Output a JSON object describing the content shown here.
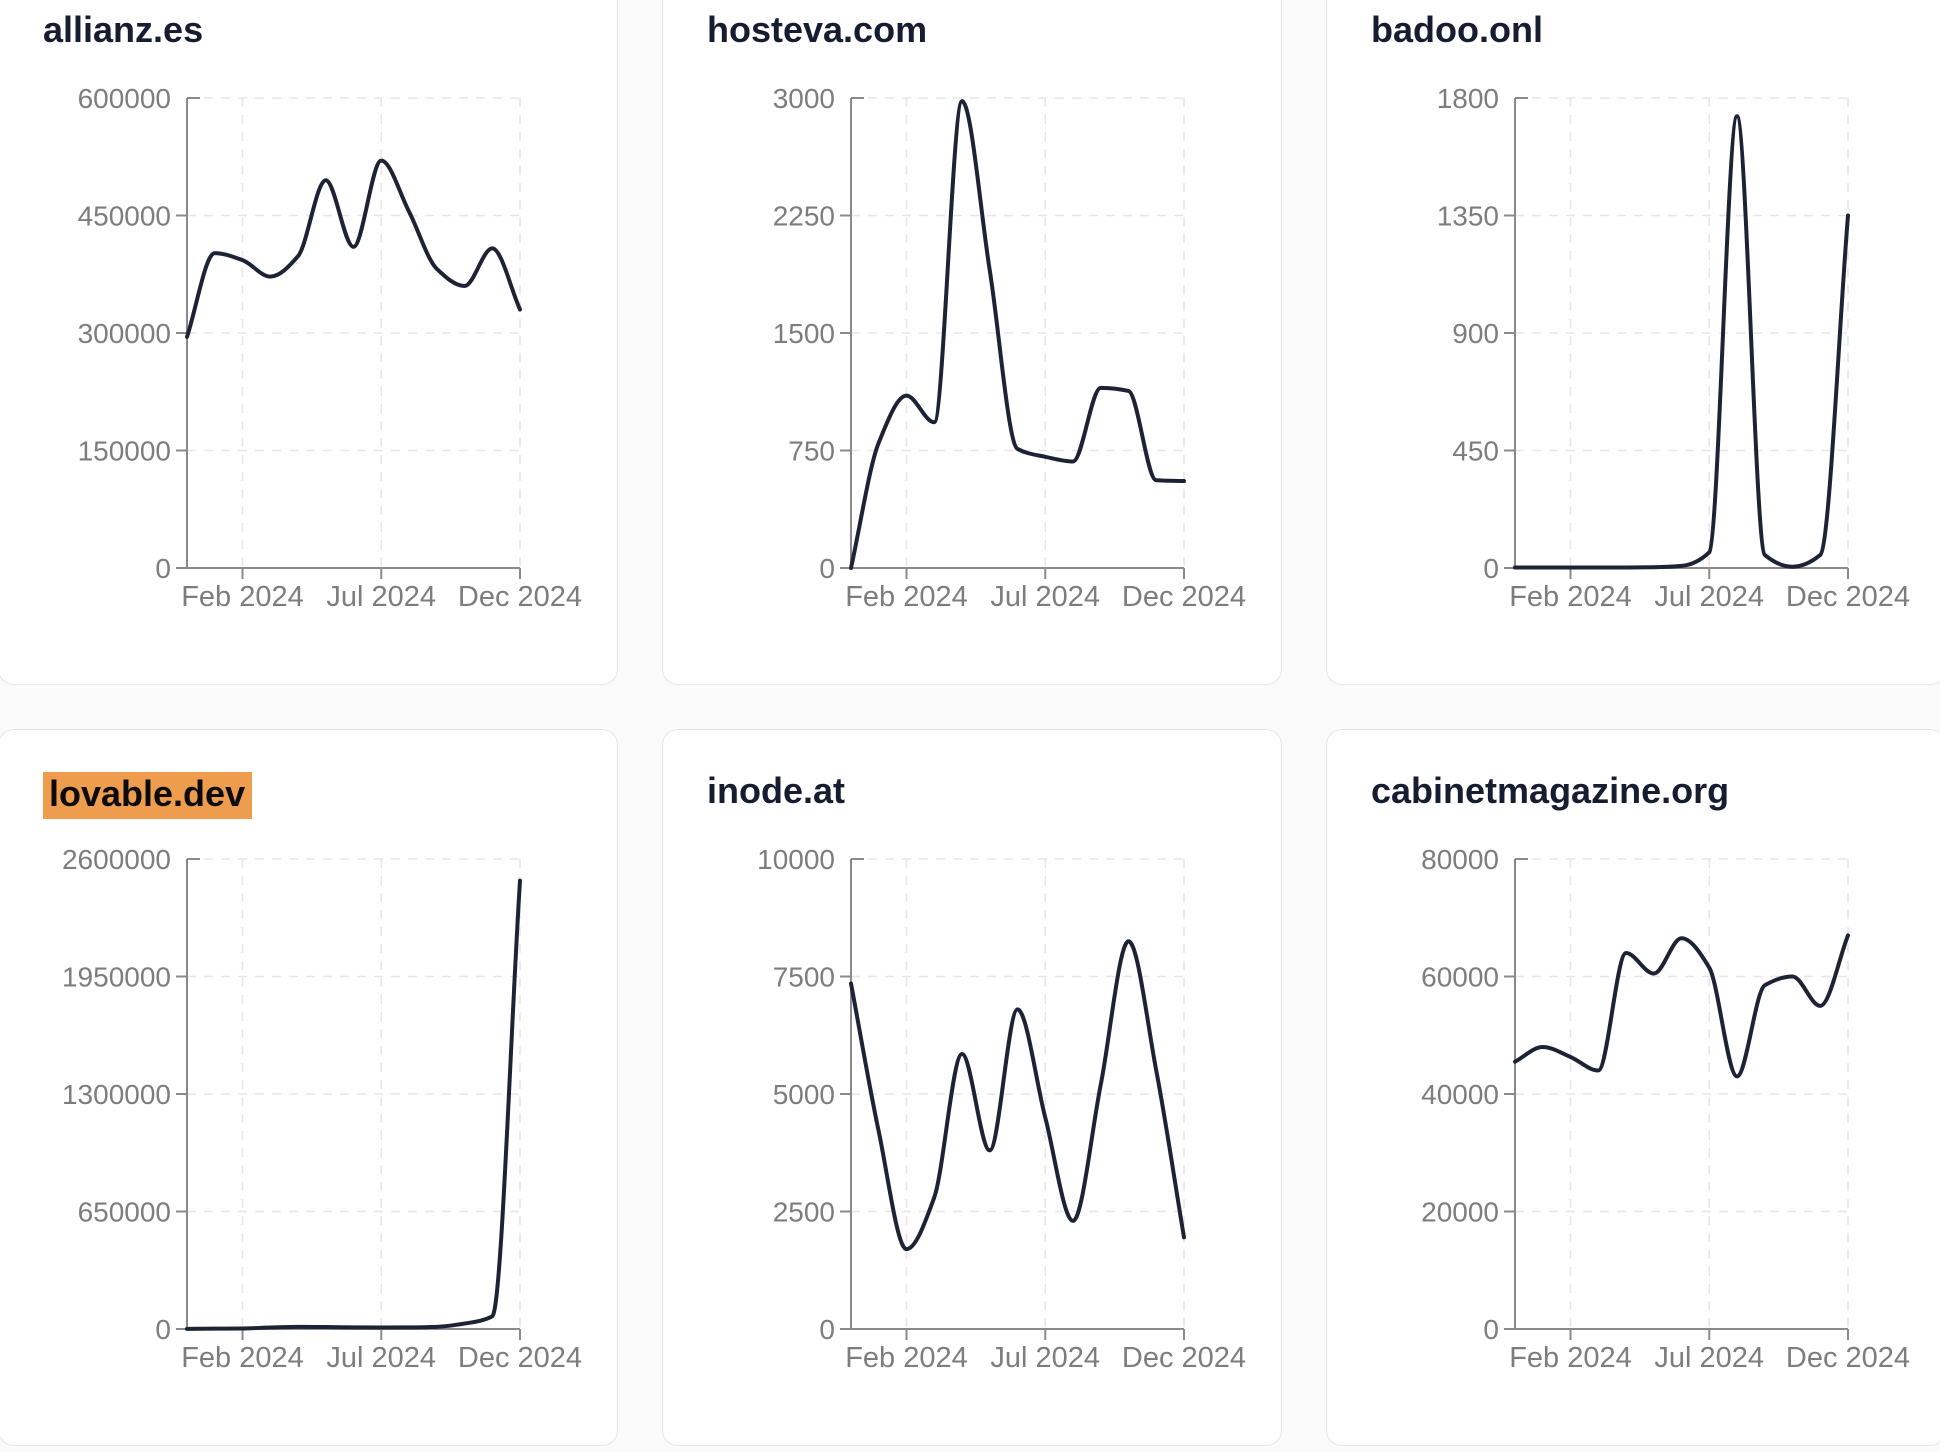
{
  "style": {
    "page_bg": "#fbfbfc",
    "card_bg": "#ffffff",
    "card_border": "#e4e7ee",
    "title_color": "#161d30",
    "line_color": "#1c2335",
    "axis_color": "#8a8a8a",
    "label_color": "#7d7d7d",
    "grid_color": "#e6e6e8",
    "highlight_bg": "#ee9c4e",
    "highlight_text": "#0b0b0b"
  },
  "x_axis": {
    "months": [
      "2023-12",
      "2024-01",
      "2024-02",
      "2024-03",
      "2024-04",
      "2024-05",
      "2024-06",
      "2024-07",
      "2024-08",
      "2024-09",
      "2024-10",
      "2024-11",
      "2024-12"
    ],
    "tick_labels": [
      "Feb 2024",
      "Jul 2024",
      "Dec 2024"
    ],
    "tick_month_indexes": [
      2,
      7,
      12
    ]
  },
  "chart_data": [
    {
      "type": "line",
      "title": "allianz.es",
      "highlighted": false,
      "ylim": [
        0,
        600000
      ],
      "y_ticks": [
        0,
        150000,
        300000,
        450000,
        600000
      ],
      "x_tick_labels": [
        "Feb 2024",
        "Jul 2024",
        "Dec 2024"
      ],
      "values": [
        295000,
        402000,
        393000,
        372000,
        398000,
        495000,
        410000,
        520000,
        455000,
        382000,
        360000,
        408000,
        330000
      ]
    },
    {
      "type": "line",
      "title": "hosteva.com",
      "highlighted": false,
      "ylim": [
        0,
        3000
      ],
      "y_ticks": [
        0,
        750,
        1500,
        2250,
        3000
      ],
      "x_tick_labels": [
        "Feb 2024",
        "Jul 2024",
        "Dec 2024"
      ],
      "values": [
        0,
        800,
        1100,
        930,
        2980,
        1900,
        760,
        710,
        680,
        1150,
        1130,
        560,
        555
      ]
    },
    {
      "type": "line",
      "title": "badoo.onl",
      "highlighted": false,
      "ylim": [
        0,
        1800
      ],
      "y_ticks": [
        0,
        450,
        900,
        1350,
        1800
      ],
      "x_tick_labels": [
        "Feb 2024",
        "Jul 2024",
        "Dec 2024"
      ],
      "values": [
        2,
        2,
        2,
        2,
        2,
        3,
        8,
        60,
        1730,
        50,
        5,
        50,
        1350
      ]
    },
    {
      "type": "line",
      "title": "lovable.dev",
      "highlighted": true,
      "ylim": [
        0,
        2600000
      ],
      "y_ticks": [
        0,
        650000,
        1300000,
        1950000,
        2600000
      ],
      "x_tick_labels": [
        "Feb 2024",
        "Jul 2024",
        "Dec 2024"
      ],
      "values": [
        1000,
        2000,
        3000,
        8000,
        12000,
        11000,
        9000,
        8000,
        9000,
        12000,
        30000,
        70000,
        2480000
      ]
    },
    {
      "type": "line",
      "title": "inode.at",
      "highlighted": false,
      "ylim": [
        0,
        10000
      ],
      "y_ticks": [
        0,
        2500,
        5000,
        7500,
        10000
      ],
      "x_tick_labels": [
        "Feb 2024",
        "Jul 2024",
        "Dec 2024"
      ],
      "values": [
        7350,
        4200,
        1700,
        2800,
        5850,
        3800,
        6800,
        4500,
        2300,
        5200,
        8250,
        5500,
        1950
      ]
    },
    {
      "type": "line",
      "title": "cabinetmagazine.org",
      "highlighted": false,
      "ylim": [
        0,
        80000
      ],
      "y_ticks": [
        0,
        20000,
        40000,
        60000,
        80000
      ],
      "x_tick_labels": [
        "Feb 2024",
        "Jul 2024",
        "Dec 2024"
      ],
      "values": [
        45500,
        48000,
        46300,
        44000,
        64000,
        60500,
        66500,
        61500,
        43000,
        58500,
        60000,
        55000,
        67000
      ]
    }
  ]
}
